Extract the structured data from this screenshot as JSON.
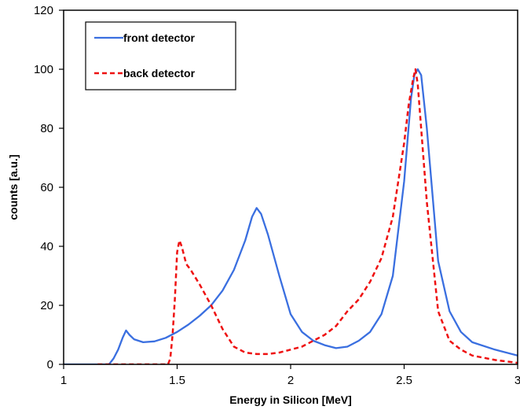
{
  "chart_data": {
    "type": "line",
    "xlabel": "Energy in Silicon [MeV]",
    "ylabel": "counts [a.u.]",
    "xlim": [
      1,
      3
    ],
    "ylim": [
      0,
      120
    ],
    "x_ticks": [
      1,
      1.5,
      2,
      2.5,
      3
    ],
    "x_tick_labels": [
      "1",
      "1.5",
      "2",
      "2.5",
      "3"
    ],
    "y_ticks": [
      0,
      20,
      40,
      60,
      80,
      100,
      120
    ],
    "y_tick_labels": [
      "0",
      "20",
      "40",
      "60",
      "80",
      "100",
      "120"
    ],
    "grid": false,
    "legend_position": "top-left",
    "series": [
      {
        "name": "front detector",
        "color": "#3a6fe0",
        "style": "solid",
        "points": [
          [
            1.0,
            0
          ],
          [
            1.1,
            0
          ],
          [
            1.2,
            0
          ],
          [
            1.22,
            2
          ],
          [
            1.24,
            5
          ],
          [
            1.26,
            9
          ],
          [
            1.275,
            11.5
          ],
          [
            1.29,
            10
          ],
          [
            1.31,
            8.5
          ],
          [
            1.35,
            7.5
          ],
          [
            1.4,
            7.8
          ],
          [
            1.45,
            9
          ],
          [
            1.5,
            11
          ],
          [
            1.55,
            13.5
          ],
          [
            1.6,
            16.5
          ],
          [
            1.65,
            20
          ],
          [
            1.7,
            25
          ],
          [
            1.75,
            32
          ],
          [
            1.8,
            42
          ],
          [
            1.83,
            50
          ],
          [
            1.85,
            53
          ],
          [
            1.87,
            51
          ],
          [
            1.9,
            44
          ],
          [
            1.95,
            30
          ],
          [
            2.0,
            17
          ],
          [
            2.05,
            11
          ],
          [
            2.1,
            8
          ],
          [
            2.15,
            6.5
          ],
          [
            2.2,
            5.5
          ],
          [
            2.25,
            6
          ],
          [
            2.3,
            8
          ],
          [
            2.35,
            11
          ],
          [
            2.4,
            17
          ],
          [
            2.45,
            30
          ],
          [
            2.5,
            62
          ],
          [
            2.53,
            90
          ],
          [
            2.545,
            98
          ],
          [
            2.56,
            100
          ],
          [
            2.575,
            98
          ],
          [
            2.6,
            80
          ],
          [
            2.65,
            35
          ],
          [
            2.7,
            18
          ],
          [
            2.75,
            11
          ],
          [
            2.8,
            7.5
          ],
          [
            2.9,
            5
          ],
          [
            3.0,
            3
          ]
        ]
      },
      {
        "name": "back detector",
        "color": "#ee1111",
        "style": "dashed",
        "points": [
          [
            1.15,
            0
          ],
          [
            1.3,
            0
          ],
          [
            1.45,
            0
          ],
          [
            1.46,
            0
          ],
          [
            1.47,
            2
          ],
          [
            1.48,
            10
          ],
          [
            1.49,
            22
          ],
          [
            1.5,
            38
          ],
          [
            1.51,
            42
          ],
          [
            1.52,
            40
          ],
          [
            1.54,
            34
          ],
          [
            1.56,
            32
          ],
          [
            1.6,
            27
          ],
          [
            1.65,
            20
          ],
          [
            1.7,
            12
          ],
          [
            1.75,
            6
          ],
          [
            1.8,
            4
          ],
          [
            1.85,
            3.5
          ],
          [
            1.9,
            3.5
          ],
          [
            1.95,
            4
          ],
          [
            2.0,
            5
          ],
          [
            2.05,
            6
          ],
          [
            2.1,
            8
          ],
          [
            2.15,
            10
          ],
          [
            2.2,
            13
          ],
          [
            2.25,
            18
          ],
          [
            2.3,
            22
          ],
          [
            2.35,
            28
          ],
          [
            2.4,
            36
          ],
          [
            2.45,
            50
          ],
          [
            2.5,
            75
          ],
          [
            2.52,
            88
          ],
          [
            2.54,
            97
          ],
          [
            2.55,
            100
          ],
          [
            2.56,
            95
          ],
          [
            2.6,
            55
          ],
          [
            2.65,
            18
          ],
          [
            2.7,
            8
          ],
          [
            2.75,
            5
          ],
          [
            2.8,
            3
          ],
          [
            2.9,
            1.5
          ],
          [
            3.0,
            0.5
          ]
        ]
      }
    ]
  }
}
